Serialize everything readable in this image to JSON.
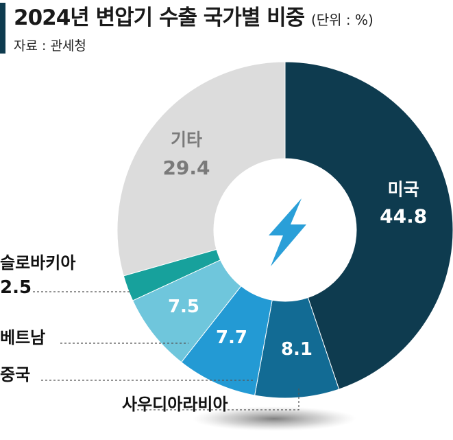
{
  "header": {
    "title": "2024년 변압기 수출 국가별 비중",
    "unit": "(단위 : %)",
    "source": "자료 : 관세청"
  },
  "chart_data": {
    "type": "pie",
    "title": "2024년 변압기 수출 국가별 비중",
    "unit": "(단위 : %)",
    "slices": [
      {
        "label": "미국",
        "value": 44.8,
        "color": "#0e3b4f"
      },
      {
        "label": "사우디아라비아",
        "value": 8.1,
        "color": "#126b94"
      },
      {
        "label": "중국",
        "value": 7.7,
        "color": "#239ad4"
      },
      {
        "label": "베트남",
        "value": 7.5,
        "color": "#6fc6dc"
      },
      {
        "label": "슬로바키아",
        "value": 2.5,
        "color": "#17a19c"
      },
      {
        "label": "기타",
        "value": 29.4,
        "color": "#dcdcdc"
      }
    ]
  },
  "colors": {
    "title_bar": "#0e3b4f",
    "inside_label_light": "#ffffff",
    "inside_label_dark": "#7a7a7a",
    "lightning": "#2a9fd8"
  },
  "icons": {
    "center": "lightning-bolt-icon"
  }
}
